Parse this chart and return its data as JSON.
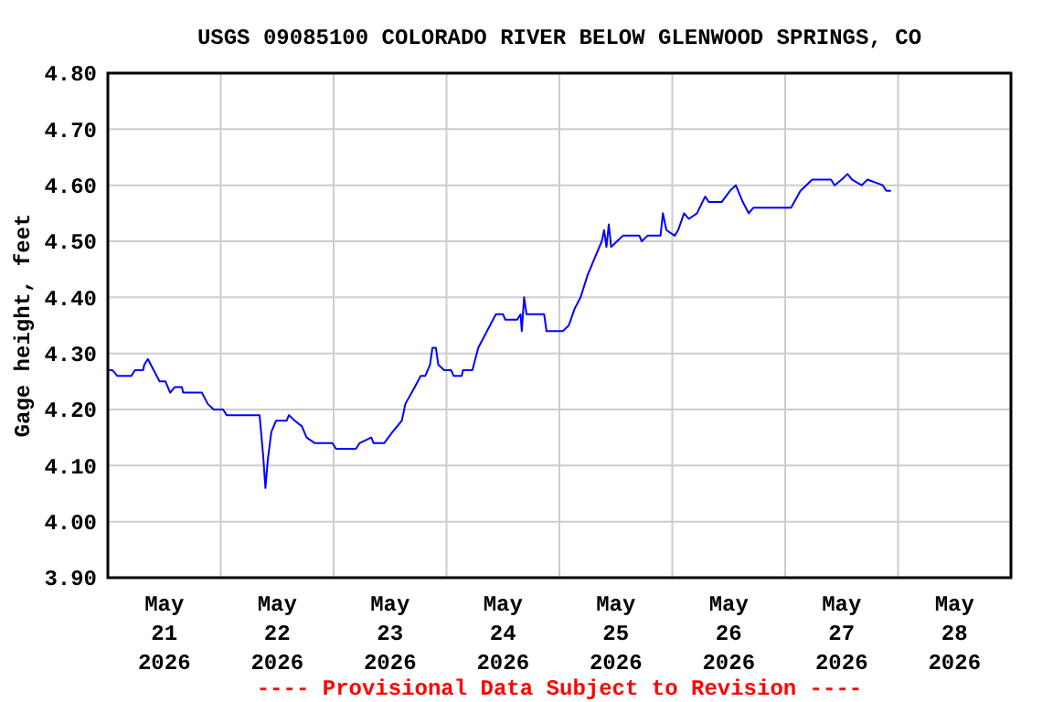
{
  "chart_data": {
    "type": "line",
    "title": "USGS 09085100 COLORADO RIVER BELOW GLENWOOD SPRINGS, CO",
    "ylabel": "Gage height, feet",
    "annotations": [
      "---- Provisional Data Subject to Revision ----"
    ],
    "xlim": [
      "2026-05-21T00:00",
      "2026-05-29T00:00"
    ],
    "xticks": [
      {
        "value": "2026-05-21T00:00",
        "label": null
      },
      {
        "value": "2026-05-21T12:00",
        "label": "May\n21\n2026"
      },
      {
        "value": "2026-05-22T00:00",
        "label": null
      },
      {
        "value": "2026-05-22T12:00",
        "label": "May\n22\n2026"
      },
      {
        "value": "2026-05-23T00:00",
        "label": null
      },
      {
        "value": "2026-05-23T12:00",
        "label": "May\n23\n2026"
      },
      {
        "value": "2026-05-24T00:00",
        "label": null
      },
      {
        "value": "2026-05-24T12:00",
        "label": "May\n24\n2026"
      },
      {
        "value": "2026-05-25T00:00",
        "label": null
      },
      {
        "value": "2026-05-25T12:00",
        "label": "May\n25\n2026"
      },
      {
        "value": "2026-05-26T00:00",
        "label": null
      },
      {
        "value": "2026-05-26T12:00",
        "label": "May\n26\n2026"
      },
      {
        "value": "2026-05-27T00:00",
        "label": null
      },
      {
        "value": "2026-05-27T12:00",
        "label": "May\n27\n2026"
      },
      {
        "value": "2026-05-28T00:00",
        "label": null
      },
      {
        "value": "2026-05-28T12:00",
        "label": "May\n28\n2026"
      },
      {
        "value": "2026-05-29T00:00",
        "label": null
      }
    ],
    "ylim": [
      3.9,
      4.8
    ],
    "yticks": [
      {
        "value": 3.9,
        "label": "3.90"
      },
      {
        "value": 4.0,
        "label": "4.00"
      },
      {
        "value": 4.1,
        "label": "4.10"
      },
      {
        "value": 4.2,
        "label": "4.20"
      },
      {
        "value": 4.3,
        "label": "4.30"
      },
      {
        "value": 4.4,
        "label": "4.40"
      },
      {
        "value": 4.5,
        "label": "4.50"
      },
      {
        "value": 4.6,
        "label": "4.60"
      },
      {
        "value": 4.7,
        "label": "4.70"
      },
      {
        "value": 4.8,
        "label": "4.80"
      }
    ],
    "grid": true,
    "marker": "none",
    "line_style": "solid",
    "x": [
      "2026-05-21T00:00",
      "2026-05-21T01:00",
      "2026-05-21T02:00",
      "2026-05-21T05:00",
      "2026-05-21T05:45",
      "2026-05-21T07:30",
      "2026-05-21T07:45",
      "2026-05-21T08:30",
      "2026-05-21T09:45",
      "2026-05-21T11:00",
      "2026-05-21T12:15",
      "2026-05-21T13:15",
      "2026-05-21T14:15",
      "2026-05-21T15:45",
      "2026-05-21T16:00",
      "2026-05-21T20:00",
      "2026-05-21T21:15",
      "2026-05-21T22:30",
      "2026-05-22T00:30",
      "2026-05-22T01:15",
      "2026-05-22T08:15",
      "2026-05-22T09:00",
      "2026-05-22T09:30",
      "2026-05-22T10:00",
      "2026-05-22T10:45",
      "2026-05-22T11:45",
      "2026-05-22T14:00",
      "2026-05-22T14:30",
      "2026-05-22T15:45",
      "2026-05-22T17:15",
      "2026-05-22T18:15",
      "2026-05-22T20:00",
      "2026-05-22T23:45",
      "2026-05-23T00:30",
      "2026-05-23T04:45",
      "2026-05-23T05:30",
      "2026-05-23T08:00",
      "2026-05-23T08:30",
      "2026-05-23T10:45",
      "2026-05-23T12:30",
      "2026-05-23T14:30",
      "2026-05-23T15:15",
      "2026-05-23T17:15",
      "2026-05-23T18:30",
      "2026-05-23T19:30",
      "2026-05-23T20:30",
      "2026-05-23T21:00",
      "2026-05-23T21:45",
      "2026-05-23T22:15",
      "2026-05-23T23:30",
      "2026-05-24T01:00",
      "2026-05-24T01:30",
      "2026-05-24T03:15",
      "2026-05-24T03:30",
      "2026-05-24T05:30",
      "2026-05-24T06:45",
      "2026-05-24T08:00",
      "2026-05-24T09:15",
      "2026-05-24T10:30",
      "2026-05-24T12:00",
      "2026-05-24T12:30",
      "2026-05-24T15:00",
      "2026-05-24T15:45",
      "2026-05-24T16:00",
      "2026-05-24T16:30",
      "2026-05-24T17:00",
      "2026-05-24T20:45",
      "2026-05-24T21:15",
      "2026-05-25T00:45",
      "2026-05-25T02:00",
      "2026-05-25T03:15",
      "2026-05-25T04:30",
      "2026-05-25T06:00",
      "2026-05-25T07:30",
      "2026-05-25T09:00",
      "2026-05-25T09:30",
      "2026-05-25T10:00",
      "2026-05-25T10:30",
      "2026-05-25T11:00",
      "2026-05-25T12:15",
      "2026-05-25T13:30",
      "2026-05-25T17:00",
      "2026-05-25T17:30",
      "2026-05-25T18:45",
      "2026-05-25T21:30",
      "2026-05-25T22:00",
      "2026-05-25T22:45",
      "2026-05-26T00:30",
      "2026-05-26T01:15",
      "2026-05-26T02:30",
      "2026-05-26T03:30",
      "2026-05-26T05:15",
      "2026-05-26T07:00",
      "2026-05-26T07:45",
      "2026-05-26T10:30",
      "2026-05-26T12:15",
      "2026-05-26T13:30",
      "2026-05-26T15:00",
      "2026-05-26T16:15",
      "2026-05-26T17:15",
      "2026-05-27T01:15",
      "2026-05-27T03:15",
      "2026-05-27T05:45",
      "2026-05-27T09:45",
      "2026-05-27T10:30",
      "2026-05-27T12:00",
      "2026-05-27T13:15",
      "2026-05-27T14:15",
      "2026-05-27T16:15",
      "2026-05-27T17:30",
      "2026-05-27T20:45",
      "2026-05-27T21:30",
      "2026-05-27T22:30"
    ],
    "series": [
      {
        "color": "#0000ff",
        "values": [
          4.27,
          4.27,
          4.26,
          4.26,
          4.27,
          4.27,
          4.28,
          4.29,
          4.27,
          4.25,
          4.25,
          4.23,
          4.24,
          4.24,
          4.23,
          4.23,
          4.21,
          4.2,
          4.2,
          4.19,
          4.19,
          4.12,
          4.06,
          4.11,
          4.16,
          4.18,
          4.18,
          4.19,
          4.18,
          4.17,
          4.15,
          4.14,
          4.14,
          4.13,
          4.13,
          4.14,
          4.15,
          4.14,
          4.14,
          4.16,
          4.18,
          4.21,
          4.24,
          4.26,
          4.26,
          4.28,
          4.31,
          4.31,
          4.28,
          4.27,
          4.27,
          4.26,
          4.26,
          4.27,
          4.27,
          4.31,
          4.33,
          4.35,
          4.37,
          4.37,
          4.36,
          4.36,
          4.37,
          4.34,
          4.4,
          4.37,
          4.37,
          4.34,
          4.34,
          4.35,
          4.38,
          4.4,
          4.44,
          4.47,
          4.5,
          4.52,
          4.49,
          4.53,
          4.49,
          4.5,
          4.51,
          4.51,
          4.5,
          4.51,
          4.51,
          4.55,
          4.52,
          4.51,
          4.52,
          4.55,
          4.54,
          4.55,
          4.58,
          4.57,
          4.57,
          4.59,
          4.6,
          4.57,
          4.55,
          4.56,
          4.56,
          4.59,
          4.61,
          4.61,
          4.6,
          4.61,
          4.62,
          4.61,
          4.6,
          4.61,
          4.6,
          4.59,
          4.59
        ]
      }
    ]
  }
}
